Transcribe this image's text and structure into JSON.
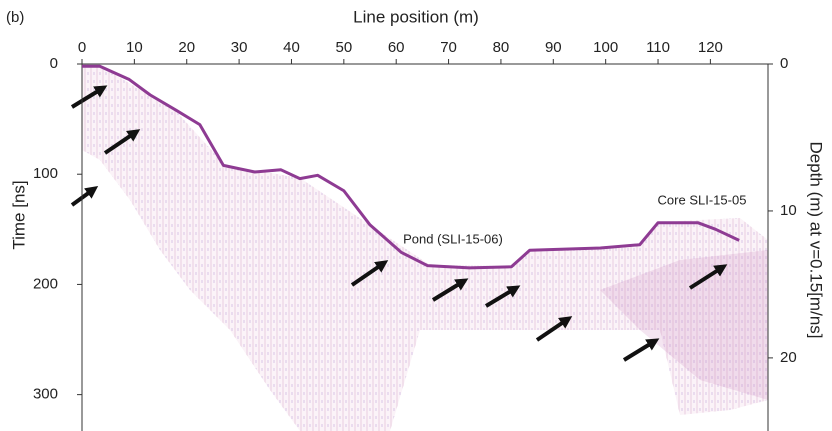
{
  "chart_data": {
    "type": "line",
    "panel_label": "(b)",
    "x_label": "Line position (m)",
    "y_label": "Time [ns]",
    "y2_label": "Depth (m) at v=0.15[m/ns]",
    "x": [
      0,
      3.4,
      9,
      13,
      18,
      22.5,
      27,
      33,
      38,
      41.6,
      45,
      50,
      55,
      61,
      66,
      74,
      82,
      85.5,
      99,
      106.5,
      110,
      117.6,
      121,
      125.5
    ],
    "values": [
      2,
      2,
      14,
      28,
      42,
      55,
      92,
      98,
      96,
      104,
      101,
      115,
      146,
      171,
      183,
      185,
      184,
      169,
      167,
      164,
      144,
      144,
      150,
      160
    ],
    "color": "#8e3b93",
    "xlim": [
      0,
      131
    ],
    "xticks": [
      0,
      10,
      20,
      30,
      40,
      50,
      60,
      70,
      80,
      90,
      100,
      110,
      120
    ],
    "ylim": [
      0,
      333
    ],
    "yticks": [
      0,
      100,
      200,
      300
    ],
    "y2lim": [
      0,
      24.975
    ],
    "y2ticks": [
      0,
      10,
      20
    ],
    "annotations": [
      "Pond (SLI-15-06)",
      "Core SLI-15-05"
    ]
  }
}
